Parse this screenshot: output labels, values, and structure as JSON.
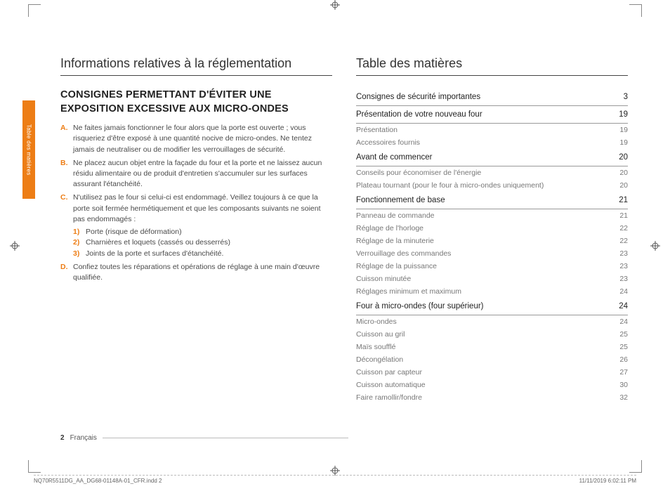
{
  "sideTab": "Table des matières",
  "left": {
    "h1": "Informations relatives à la réglementation",
    "h2": "CONSIGNES PERMETTANT D'ÉVITER UNE EXPOSITION EXCESSIVE AUX MICRO-ONDES",
    "items": [
      {
        "m": "A.",
        "t": "Ne faites jamais fonctionner le four alors que la porte est ouverte ; vous risqueriez d'être exposé à une quantité nocive de micro-ondes. Ne tentez jamais de neutraliser ou de modifier les verrouillages de sécurité."
      },
      {
        "m": "B.",
        "t": "Ne placez aucun objet entre la façade du four et la porte et ne laissez aucun résidu alimentaire ou de produit d'entretien s'accumuler sur les surfaces assurant l'étanchéité."
      },
      {
        "m": "C.",
        "t": "N'utilisez pas le four si celui-ci est endommagé. Veillez toujours à ce que la porte soit fermée hermétiquement et que les composants suivants ne soient pas endommagés :",
        "sub": [
          {
            "m": "1)",
            "t": "Porte (risque de déformation)"
          },
          {
            "m": "2)",
            "t": "Charnières et loquets (cassés ou desserrés)"
          },
          {
            "m": "3)",
            "t": "Joints de la porte et surfaces d'étanchéité."
          }
        ]
      },
      {
        "m": "D.",
        "t": "Confiez toutes les réparations et opérations de réglage à une main d'œuvre qualifiée."
      }
    ]
  },
  "right": {
    "h1": "Table des matières",
    "toc": [
      {
        "type": "head",
        "label": "Consignes de sécurité importantes",
        "pg": "3"
      },
      {
        "type": "head",
        "label": "Présentation de votre nouveau four",
        "pg": "19"
      },
      {
        "type": "sub",
        "label": "Présentation",
        "pg": "19"
      },
      {
        "type": "sub",
        "label": "Accessoires fournis",
        "pg": "19"
      },
      {
        "type": "head",
        "label": "Avant de commencer",
        "pg": "20"
      },
      {
        "type": "sub",
        "label": "Conseils pour économiser de l'énergie",
        "pg": "20"
      },
      {
        "type": "sub",
        "label": "Plateau tournant (pour le four à micro-ondes uniquement)",
        "pg": "20"
      },
      {
        "type": "head",
        "label": "Fonctionnement de base",
        "pg": "21"
      },
      {
        "type": "sub",
        "label": "Panneau de commande",
        "pg": "21"
      },
      {
        "type": "sub",
        "label": "Réglage de l'horloge",
        "pg": "22"
      },
      {
        "type": "sub",
        "label": "Réglage de la minuterie",
        "pg": "22"
      },
      {
        "type": "sub",
        "label": "Verrouillage des commandes",
        "pg": "23"
      },
      {
        "type": "sub",
        "label": "Réglage de la puissance",
        "pg": "23"
      },
      {
        "type": "sub",
        "label": "Cuisson minutée",
        "pg": "23"
      },
      {
        "type": "sub",
        "label": "Réglages minimum et maximum",
        "pg": "24"
      },
      {
        "type": "head",
        "label": "Four à micro-ondes (four supérieur)",
        "pg": "24"
      },
      {
        "type": "sub",
        "label": "Micro-ondes",
        "pg": "24"
      },
      {
        "type": "sub",
        "label": "Cuisson au gril",
        "pg": "25"
      },
      {
        "type": "sub",
        "label": "Maïs soufflé",
        "pg": "25"
      },
      {
        "type": "sub",
        "label": "Décongélation",
        "pg": "26"
      },
      {
        "type": "sub",
        "label": "Cuisson par capteur",
        "pg": "27"
      },
      {
        "type": "sub",
        "label": "Cuisson automatique",
        "pg": "30"
      },
      {
        "type": "sub",
        "label": "Faire ramollir/fondre",
        "pg": "32"
      }
    ]
  },
  "footer": {
    "num": "2",
    "lang": "Français"
  },
  "tiny": {
    "left": "NQ70R5511DG_AA_DG68-01148A-01_CFR.indd   2",
    "right": "11/11/2019   6:02:11 PM"
  }
}
